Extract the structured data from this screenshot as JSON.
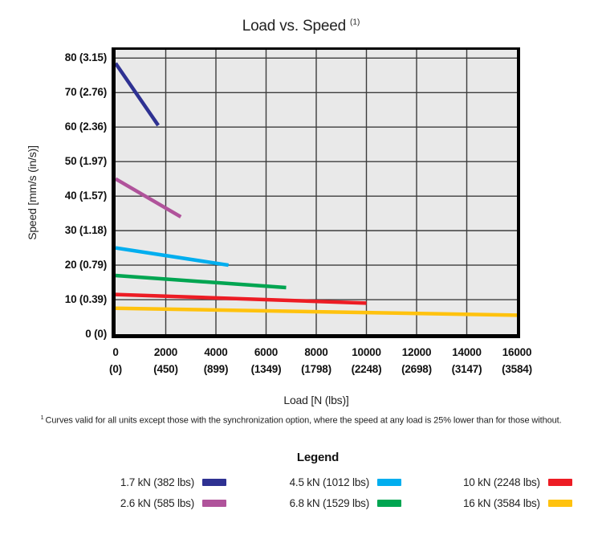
{
  "chart_data": {
    "type": "line",
    "title": "Load vs. Speed",
    "title_superscript": "(1)",
    "xlabel": "Load [N (lbs)]",
    "ylabel": "Speed [mm/s (in/s)]",
    "xlim": [
      0,
      16000
    ],
    "ylim": [
      0,
      82.4
    ],
    "grid": true,
    "legend_position": "bottom",
    "plot_background": "#e9e9e9",
    "grid_color": "#3d3d3d",
    "x_ticks": [
      {
        "value": 0,
        "label": "0",
        "sub": "(0)"
      },
      {
        "value": 2000,
        "label": "2000",
        "sub": "(450)"
      },
      {
        "value": 4000,
        "label": "4000",
        "sub": "(899)"
      },
      {
        "value": 6000,
        "label": "6000",
        "sub": "(1349)"
      },
      {
        "value": 8000,
        "label": "8000",
        "sub": "(1798)"
      },
      {
        "value": 10000,
        "label": "10000",
        "sub": "(2248)"
      },
      {
        "value": 12000,
        "label": "12000",
        "sub": "(2698)"
      },
      {
        "value": 14000,
        "label": "14000",
        "sub": "(3147)"
      },
      {
        "value": 16000,
        "label": "16000",
        "sub": "(3584)"
      }
    ],
    "y_ticks": [
      {
        "value": 0,
        "label": "0 (0)"
      },
      {
        "value": 10,
        "label": "10 (0.39)"
      },
      {
        "value": 20,
        "label": "20 (0.79)"
      },
      {
        "value": 30,
        "label": "30 (1.18)"
      },
      {
        "value": 40,
        "label": "40 (1.57)"
      },
      {
        "value": 50,
        "label": "50 (1.97)"
      },
      {
        "value": 60,
        "label": "60 (2.36)"
      },
      {
        "value": 70,
        "label": "70 (2.76)"
      },
      {
        "value": 80,
        "label": "80 (3.15)"
      }
    ],
    "series": [
      {
        "name": "1.7 kN (382 lbs)",
        "color": "#2E3192",
        "points": [
          [
            0,
            78.5
          ],
          [
            1700,
            60.5
          ]
        ]
      },
      {
        "name": "2.6 kN (585 lbs)",
        "color": "#B0539B",
        "points": [
          [
            0,
            45
          ],
          [
            2600,
            34
          ]
        ]
      },
      {
        "name": "4.5 kN (1012 lbs)",
        "color": "#00AEEF",
        "points": [
          [
            0,
            25
          ],
          [
            4500,
            20
          ]
        ]
      },
      {
        "name": "6.8 kN (1529 lbs)",
        "color": "#00A551",
        "points": [
          [
            0,
            17
          ],
          [
            6800,
            13.5
          ]
        ]
      },
      {
        "name": "10 kN (2248 lbs)",
        "color": "#ED1C24",
        "points": [
          [
            0,
            11.5
          ],
          [
            10000,
            9
          ]
        ]
      },
      {
        "name": "16 kN (3584 lbs)",
        "color": "#FFC20E",
        "points": [
          [
            0,
            7.5
          ],
          [
            16000,
            5.5
          ]
        ]
      }
    ]
  },
  "footnote": {
    "superscript": "1",
    "text": "Curves valid for all units except those with the synchronization option, where the speed at any load is 25% lower than for those without."
  },
  "legend": {
    "title": "Legend",
    "items": [
      {
        "label": "1.7 kN (382 lbs)",
        "color": "#2E3192"
      },
      {
        "label": "2.6 kN (585 lbs)",
        "color": "#B0539B"
      },
      {
        "label": "4.5 kN (1012 lbs)",
        "color": "#00AEEF"
      },
      {
        "label": "6.8 kN (1529 lbs)",
        "color": "#00A551"
      },
      {
        "label": "10 kN (2248 lbs)",
        "color": "#ED1C24"
      },
      {
        "label": "16 kN (3584 lbs)",
        "color": "#FFC20E"
      }
    ]
  }
}
